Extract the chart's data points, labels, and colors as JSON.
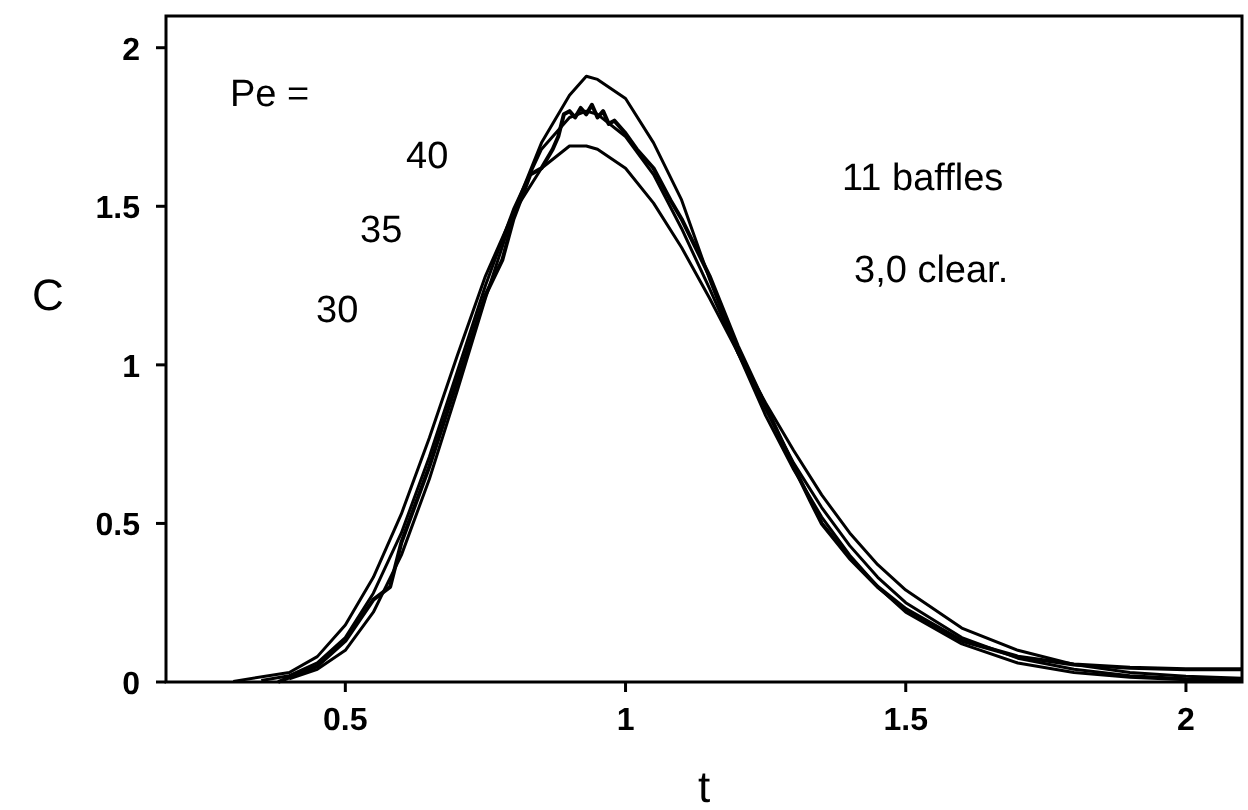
{
  "chart_data": {
    "type": "line",
    "xlabel": "t",
    "ylabel": "C",
    "xlim": [
      0.18,
      2.1
    ],
    "ylim": [
      0,
      2.1
    ],
    "xticks": [
      0.5,
      1,
      1.5,
      2
    ],
    "yticks": [
      0,
      0.5,
      1,
      1.5,
      2
    ],
    "grid": false,
    "marker": "none",
    "line_style": "solid",
    "annotations": [
      "Pe =",
      "11 baffles",
      "3,0 clear."
    ],
    "series": [
      {
        "name": "40",
        "color": "#000000",
        "x": [
          0.4,
          0.45,
          0.5,
          0.55,
          0.6,
          0.65,
          0.7,
          0.75,
          0.8,
          0.85,
          0.9,
          0.93,
          0.95,
          1.0,
          1.05,
          1.1,
          1.15,
          1.2,
          1.25,
          1.3,
          1.35,
          1.4,
          1.45,
          1.5,
          1.6,
          1.7,
          1.8,
          1.9,
          2.0,
          2.1
        ],
        "values": [
          0.01,
          0.04,
          0.1,
          0.22,
          0.4,
          0.64,
          0.92,
          1.21,
          1.48,
          1.7,
          1.85,
          1.91,
          1.9,
          1.84,
          1.7,
          1.52,
          1.27,
          1.04,
          0.84,
          0.67,
          0.52,
          0.4,
          0.3,
          0.22,
          0.12,
          0.06,
          0.03,
          0.015,
          0.007,
          0.002
        ]
      },
      {
        "name": "35",
        "color": "#000000",
        "x": [
          0.35,
          0.4,
          0.45,
          0.5,
          0.55,
          0.6,
          0.65,
          0.7,
          0.75,
          0.8,
          0.85,
          0.9,
          0.93,
          0.95,
          1.0,
          1.05,
          1.1,
          1.15,
          1.2,
          1.25,
          1.3,
          1.35,
          1.4,
          1.45,
          1.5,
          1.6,
          1.7,
          1.8,
          1.9,
          2.0,
          2.1
        ],
        "values": [
          0.005,
          0.02,
          0.06,
          0.14,
          0.28,
          0.47,
          0.71,
          0.98,
          1.25,
          1.49,
          1.68,
          1.78,
          1.8,
          1.79,
          1.72,
          1.6,
          1.43,
          1.24,
          1.04,
          0.86,
          0.69,
          0.55,
          0.43,
          0.33,
          0.25,
          0.14,
          0.075,
          0.04,
          0.02,
          0.01,
          0.005
        ]
      },
      {
        "name": "30",
        "color": "#000000",
        "x": [
          0.3,
          0.4,
          0.45,
          0.5,
          0.55,
          0.6,
          0.65,
          0.7,
          0.75,
          0.8,
          0.85,
          0.9,
          0.93,
          0.95,
          1.0,
          1.05,
          1.1,
          1.15,
          1.2,
          1.25,
          1.3,
          1.35,
          1.4,
          1.45,
          1.5,
          1.6,
          1.7,
          1.8,
          1.9,
          2.0,
          2.1
        ],
        "values": [
          0.002,
          0.03,
          0.08,
          0.18,
          0.33,
          0.53,
          0.77,
          1.03,
          1.28,
          1.48,
          1.62,
          1.69,
          1.69,
          1.68,
          1.62,
          1.51,
          1.37,
          1.21,
          1.04,
          0.88,
          0.73,
          0.59,
          0.47,
          0.37,
          0.29,
          0.17,
          0.1,
          0.055,
          0.03,
          0.018,
          0.012
        ]
      },
      {
        "color": "#000000",
        "x": [
          0.38,
          0.45,
          0.5,
          0.55,
          0.58,
          0.6,
          0.65,
          0.7,
          0.75,
          0.78,
          0.8,
          0.83,
          0.85,
          0.87,
          0.88,
          0.89,
          0.9,
          0.91,
          0.92,
          0.93,
          0.94,
          0.95,
          0.96,
          0.97,
          0.98,
          1.0,
          1.02,
          1.05,
          1.08,
          1.1,
          1.15,
          1.2,
          1.25,
          1.3,
          1.33,
          1.35,
          1.4,
          1.45,
          1.5,
          1.6,
          1.7,
          1.8,
          1.9,
          2.0,
          2.1
        ],
        "values": [
          0,
          0.05,
          0.13,
          0.26,
          0.3,
          0.44,
          0.68,
          0.95,
          1.22,
          1.33,
          1.46,
          1.6,
          1.62,
          1.68,
          1.72,
          1.79,
          1.8,
          1.78,
          1.81,
          1.79,
          1.82,
          1.78,
          1.8,
          1.76,
          1.77,
          1.73,
          1.68,
          1.62,
          1.52,
          1.46,
          1.28,
          1.06,
          0.87,
          0.68,
          0.57,
          0.5,
          0.39,
          0.3,
          0.23,
          0.13,
          0.08,
          0.055,
          0.045,
          0.04,
          0.04
        ]
      }
    ]
  }
}
